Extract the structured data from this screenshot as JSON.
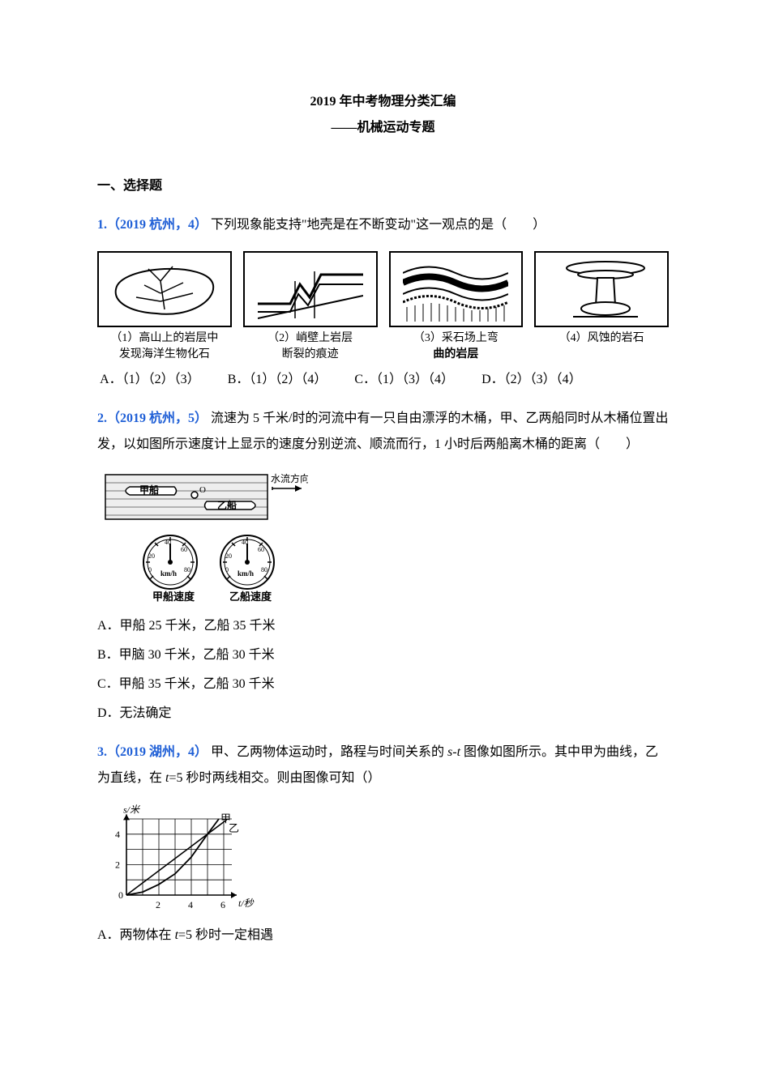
{
  "title": "2019 年中考物理分类汇编",
  "subtitle": "——机械运动专题",
  "section1_heading": "一、选择题",
  "q1": {
    "tag": "1.（2019 杭州，4）",
    "body": "下列现象能支持\"地壳是在不断变动\"这一观点的是（　　）",
    "captions": [
      "（1）高山上的岩层中\n发现海洋生物化石",
      "（2）峭壁上岩层\n断裂的痕迹",
      "（3）采石场上弯",
      "（3b）曲的岩层",
      "（4）风蚀的岩石"
    ],
    "choices": {
      "A": "A．（1）（2）（3）",
      "B": "B．（1）（2）（4）",
      "C": "C．（1）（3）（4）",
      "D": "D．（2）（3）（4）"
    }
  },
  "q2": {
    "tag": "2.（2019 杭州，5）",
    "body1": "流速为 5 千米/时的河流中有一只自由漂浮的木桶，甲、乙两船同时从木桶位置出发，以如图所示速度计上显示的速度分别逆流、顺流而行，1 小时后两船离木桶的距离（　　）",
    "fig_labels": {
      "flow": "水流方向",
      "boatA": "甲船",
      "boatB": "乙船",
      "gaugeA": "甲船速度",
      "gaugeB": "乙船速度",
      "scale": [
        "0",
        "20",
        "40",
        "60",
        "80"
      ],
      "unit": "km/h"
    },
    "choices": {
      "A": "A．甲船 25 千米，乙船 35 千米",
      "B": "B．甲脑 30 千米，乙船 30 千米",
      "C": "C．甲船 35 千米，乙船 30 千米",
      "D": "D．无法确定"
    }
  },
  "q3": {
    "tag": "3.（2019 湖州，4）",
    "body": "甲、乙两物体运动时，路程与时间关系的 s-t 图像如图所示。其中甲为曲线，乙为直线，在 t=5 秒时两线相交。则由图像可知（）",
    "graph": {
      "y_label": "s/米",
      "x_label": "t/秒",
      "y_ticks": [
        "0",
        "2",
        "4"
      ],
      "x_ticks": [
        "2",
        "4",
        "6"
      ],
      "series_labels": {
        "jia": "甲",
        "yi": "乙"
      },
      "xlim": [
        0,
        6.5
      ],
      "ylim": [
        0,
        5
      ],
      "intersection_t": 5,
      "jia_curve_pts": [
        [
          0,
          0
        ],
        [
          1,
          0.2
        ],
        [
          2,
          0.7
        ],
        [
          3,
          1.4
        ],
        [
          4,
          2.5
        ],
        [
          5,
          4.0
        ],
        [
          5.7,
          5.0
        ]
      ],
      "yi_line_pts": [
        [
          0,
          0
        ],
        [
          5,
          4
        ],
        [
          6.2,
          4.96
        ]
      ],
      "colors": {
        "axis": "#000000",
        "grid": "#000000",
        "curve": "#000000"
      }
    },
    "choices": {
      "A": "A．两物体在 t=5 秒时一定相遇"
    }
  },
  "colors": {
    "link_blue": "#1f5fd6",
    "text": "#000000",
    "bg": "#ffffff"
  }
}
